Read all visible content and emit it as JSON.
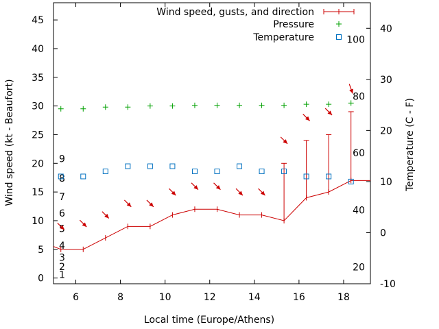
{
  "chart_data": {
    "type": "line",
    "xlabel": "Local time (Europe/Athens)",
    "ylabel": "Wind speed (kt - Beaufort)",
    "y2label": "Temperature (C - F)",
    "xlim": [
      5,
      19.2
    ],
    "ylim": [
      -1,
      48
    ],
    "y2lim": [
      -10,
      45
    ],
    "x_ticks": [
      6,
      8,
      10,
      12,
      14,
      16,
      18
    ],
    "y_ticks": [
      0,
      5,
      10,
      15,
      20,
      25,
      30,
      35,
      40,
      45
    ],
    "y2_ticks": [
      -10,
      0,
      10,
      20,
      30,
      40
    ],
    "beaufort_labels": [
      {
        "label": "1",
        "wind": 0.6
      },
      {
        "label": "2",
        "wind": 2.0
      },
      {
        "label": "3",
        "wind": 3.6
      },
      {
        "label": "4",
        "wind": 5.7
      },
      {
        "label": "5",
        "wind": 8.6
      },
      {
        "label": "6",
        "wind": 11.3
      },
      {
        "label": "7",
        "wind": 14.2
      },
      {
        "label": "8",
        "wind": 17.4
      },
      {
        "label": "9",
        "wind": 20.8
      }
    ],
    "fahrenheit_labels": [
      {
        "label": "20",
        "temp": -6.7
      },
      {
        "label": "40",
        "temp": 4.4
      },
      {
        "label": "60",
        "temp": 15.6
      },
      {
        "label": "80",
        "temp": 26.7
      },
      {
        "label": "100",
        "temp": 37.8
      }
    ],
    "legend": [
      {
        "label": "Wind speed, gusts, and direction",
        "color": "#cc0000",
        "symbol": "errorbar"
      },
      {
        "label": "Pressure",
        "color": "#00a000",
        "symbol": "plus"
      },
      {
        "label": "Temperature",
        "color": "#0070c0",
        "symbol": "square"
      }
    ],
    "series": [
      {
        "name": "Wind speed, gusts, and direction",
        "color": "#cc0000",
        "x": [
          5.33,
          6.33,
          7.33,
          8.33,
          9.33,
          10.33,
          11.33,
          12.33,
          13.33,
          14.33,
          15.33,
          16.33,
          17.33,
          18.33
        ],
        "y": [
          5,
          5,
          7,
          9,
          9,
          11,
          12,
          12,
          11,
          11,
          10,
          14,
          15,
          17
        ],
        "gust": [
          null,
          null,
          null,
          null,
          null,
          null,
          null,
          null,
          null,
          null,
          20,
          24,
          25,
          29
        ],
        "direction_arrow_y": [
          9,
          9.5,
          11,
          13,
          13,
          15,
          16,
          16,
          15,
          15,
          24,
          28,
          29,
          33
        ],
        "direction_deg": [
          -45,
          -45,
          -45,
          -45,
          -45,
          -45,
          -45,
          -45,
          -45,
          -45,
          -45,
          -45,
          -45,
          -30
        ],
        "line_ends": [
          5.0,
          19.2
        ],
        "line_end_values": [
          5.5,
          17
        ]
      },
      {
        "name": "Pressure",
        "color": "#00a000",
        "x": [
          5.33,
          6.33,
          7.33,
          8.33,
          9.33,
          10.33,
          11.33,
          12.33,
          13.33,
          14.33,
          15.33,
          16.33,
          17.33,
          18.33
        ],
        "y": [
          29.5,
          29.5,
          29.8,
          29.8,
          30.0,
          30.0,
          30.1,
          30.1,
          30.1,
          30.1,
          30.1,
          30.3,
          30.3,
          30.5
        ]
      },
      {
        "name": "Temperature",
        "color": "#0070c0",
        "axis": "y2",
        "x": [
          5.33,
          6.33,
          7.33,
          8.33,
          9.33,
          10.33,
          11.33,
          12.33,
          13.33,
          14.33,
          15.33,
          16.33,
          17.33,
          18.33
        ],
        "y": [
          11,
          11,
          12,
          13,
          13,
          13,
          12,
          12,
          13,
          12,
          12,
          11,
          11,
          10
        ]
      }
    ]
  }
}
